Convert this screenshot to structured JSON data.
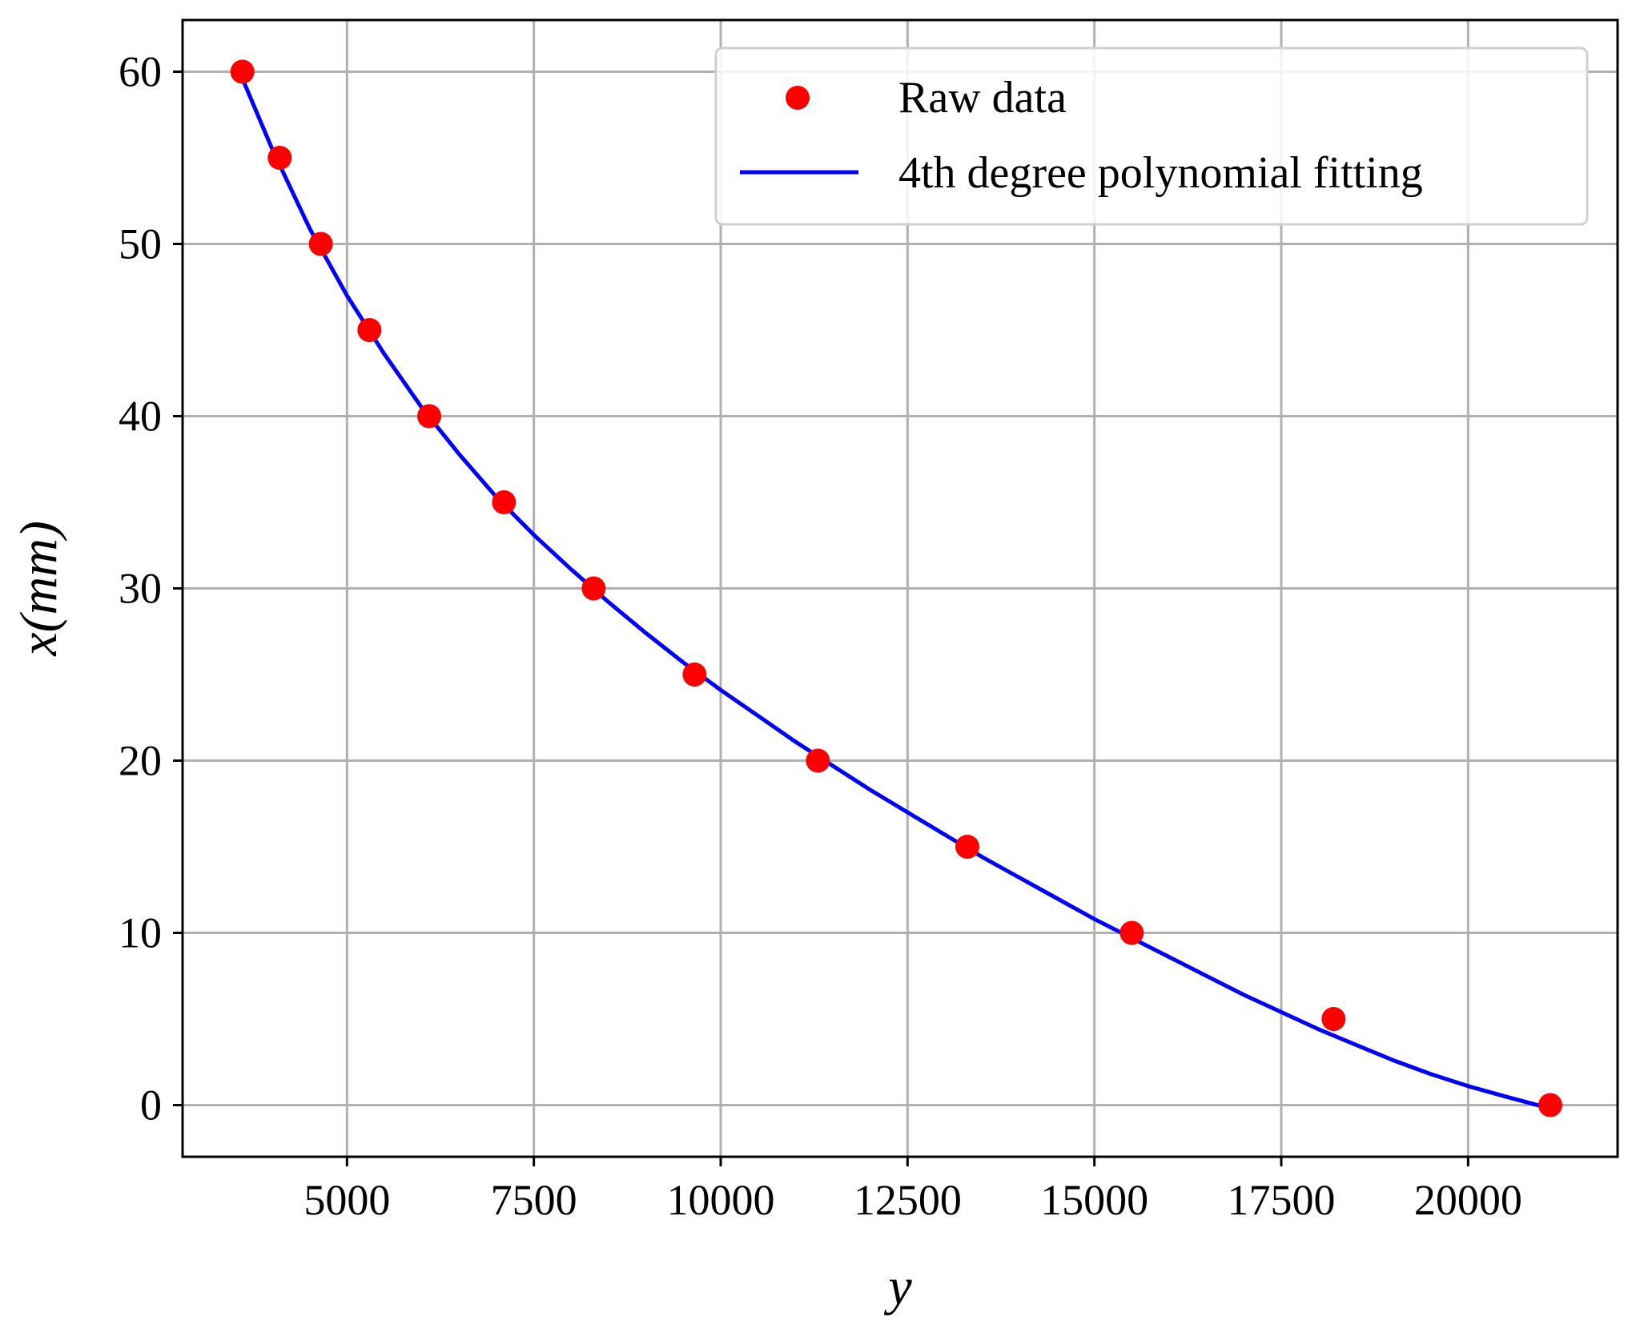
{
  "chart_data": {
    "type": "scatter",
    "title": "",
    "xlabel": "y",
    "ylabel": "x(mm)",
    "xlim": [
      2800,
      22000
    ],
    "ylim": [
      -3,
      63
    ],
    "xticks": [
      5000,
      7500,
      10000,
      12500,
      15000,
      17500,
      20000
    ],
    "yticks": [
      0,
      10,
      20,
      30,
      40,
      50,
      60
    ],
    "xtick_labels": [
      "5000",
      "7500",
      "10000",
      "12500",
      "15000",
      "17500",
      "20000"
    ],
    "ytick_labels": [
      "0",
      "10",
      "20",
      "30",
      "40",
      "50",
      "60"
    ],
    "grid": true,
    "legend_position": "top-right",
    "series": [
      {
        "name": "Raw data",
        "kind": "scatter",
        "color": "#ff0000",
        "x": [
          3600,
          4100,
          4650,
          5300,
          6100,
          7100,
          8300,
          9650,
          11300,
          13300,
          15500,
          18200,
          21100
        ],
        "y": [
          60,
          55,
          50,
          45,
          40,
          35,
          30,
          25,
          20,
          15,
          10,
          5,
          0
        ]
      },
      {
        "name": "4th degree polynomial fitting",
        "kind": "line",
        "color": "#0000ff",
        "x": [
          3600,
          4000,
          4500,
          5000,
          5500,
          6000,
          6500,
          7000,
          7500,
          8000,
          8500,
          9000,
          9500,
          10000,
          10500,
          11000,
          11500,
          12000,
          12500,
          13000,
          13500,
          14000,
          14500,
          15000,
          15500,
          16000,
          16500,
          17000,
          17500,
          18000,
          18500,
          19000,
          19500,
          20000,
          20500,
          21100
        ],
        "y": [
          59.6,
          55.5,
          50.9,
          47.0,
          43.6,
          40.5,
          37.8,
          35.3,
          33.1,
          31.1,
          29.2,
          27.4,
          25.7,
          24.1,
          22.6,
          21.1,
          19.7,
          18.3,
          17.0,
          15.7,
          14.4,
          13.2,
          12.0,
          10.8,
          9.7,
          8.6,
          7.5,
          6.4,
          5.4,
          4.4,
          3.5,
          2.6,
          1.8,
          1.1,
          0.5,
          -0.2
        ]
      }
    ]
  }
}
